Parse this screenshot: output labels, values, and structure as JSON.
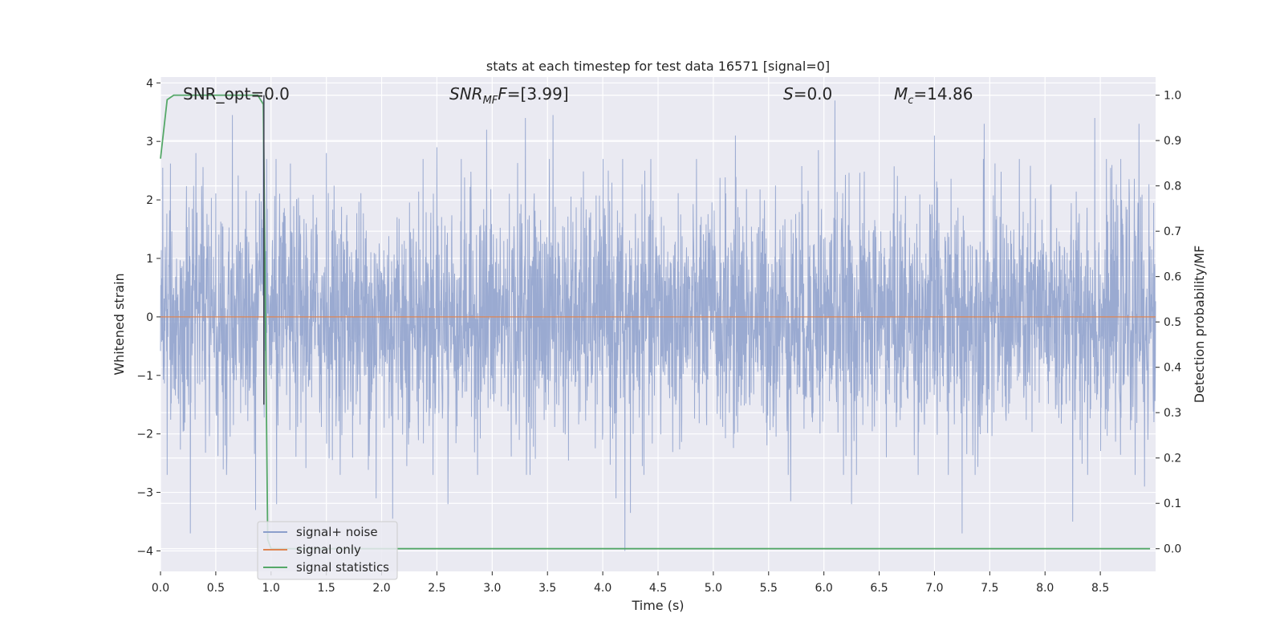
{
  "chart_data": {
    "type": "line",
    "title": "stats at each timestep for test data 16571 [signal=0]",
    "xlabel": "Time (s)",
    "ylabel": "Whitened strain",
    "y2label": "Detection probability/MF",
    "xlim": [
      0,
      9.0
    ],
    "ylim": [
      -4.35,
      4.1
    ],
    "y2lim": [
      -0.05,
      1.04
    ],
    "xticks": [
      0.0,
      0.5,
      1.0,
      1.5,
      2.0,
      2.5,
      3.0,
      3.5,
      4.0,
      4.5,
      5.0,
      5.5,
      6.0,
      6.5,
      7.0,
      7.5,
      8.0,
      8.5
    ],
    "xtick_labels": [
      "0.0",
      "0.5",
      "1.0",
      "1.5",
      "2.0",
      "2.5",
      "3.0",
      "3.5",
      "4.0",
      "4.5",
      "5.0",
      "5.5",
      "6.0",
      "6.5",
      "7.0",
      "7.5",
      "8.0",
      "8.5"
    ],
    "yticks": [
      -4,
      -3,
      -2,
      -1,
      0,
      1,
      2,
      3,
      4
    ],
    "ytick_labels": [
      "−4",
      "−3",
      "−2",
      "−1",
      "0",
      "1",
      "2",
      "3",
      "4"
    ],
    "y2ticks": [
      0.0,
      0.1,
      0.2,
      0.3,
      0.4,
      0.5,
      0.6,
      0.7,
      0.8,
      0.9,
      1.0
    ],
    "y2tick_labels": [
      "0.0",
      "0.1",
      "0.2",
      "0.3",
      "0.4",
      "0.5",
      "0.6",
      "0.7",
      "0.8",
      "0.9",
      "1.0"
    ],
    "grid": true,
    "legend_position": "lower-left",
    "annotations": {
      "snr_opt": "SNR_opt=0.0",
      "snr_mf_main": "SNR",
      "snr_mf_sub": "MF",
      "snr_mf_value": "=[3.99]",
      "s_label": "S",
      "s_value": "=0.0",
      "mc_main": "M",
      "mc_sub": "c",
      "mc_value": "=14.86"
    },
    "series": [
      {
        "name": "signal+ noise",
        "color": "#8c9fcb",
        "style": "noise-trace",
        "noise_sigma": 1.0,
        "peaks": [
          {
            "x": 0.02,
            "y": 2.55
          },
          {
            "x": 0.06,
            "y": -2.7
          },
          {
            "x": 0.27,
            "y": -3.7
          },
          {
            "x": 0.32,
            "y": 2.8
          },
          {
            "x": 0.65,
            "y": 3.45
          },
          {
            "x": 0.86,
            "y": -3.3
          },
          {
            "x": 0.93,
            "y": 3.7
          },
          {
            "x": 1.05,
            "y": -3.2
          },
          {
            "x": 1.5,
            "y": 2.8
          },
          {
            "x": 1.95,
            "y": -3.1
          },
          {
            "x": 2.1,
            "y": -3.45
          },
          {
            "x": 2.5,
            "y": 2.9
          },
          {
            "x": 2.6,
            "y": -3.2
          },
          {
            "x": 2.95,
            "y": 3.2
          },
          {
            "x": 3.3,
            "y": 3.4
          },
          {
            "x": 3.55,
            "y": 3.45
          },
          {
            "x": 4.05,
            "y": 2.5
          },
          {
            "x": 4.12,
            "y": -3.1
          },
          {
            "x": 4.2,
            "y": -4.0
          },
          {
            "x": 4.25,
            "y": -3.35
          },
          {
            "x": 5.2,
            "y": 3.1
          },
          {
            "x": 5.95,
            "y": 2.85
          },
          {
            "x": 6.1,
            "y": 3.7
          },
          {
            "x": 6.25,
            "y": -3.2
          },
          {
            "x": 5.7,
            "y": -3.15
          },
          {
            "x": 7.0,
            "y": 3.1
          },
          {
            "x": 7.25,
            "y": -3.7
          },
          {
            "x": 7.45,
            "y": 3.3
          },
          {
            "x": 8.25,
            "y": -3.5
          },
          {
            "x": 8.45,
            "y": 3.4
          },
          {
            "x": 8.85,
            "y": 3.3
          },
          {
            "x": 8.9,
            "y": -2.9
          }
        ]
      },
      {
        "name": "signal only",
        "color": "#dd8452",
        "x": [
          0.0,
          9.0
        ],
        "y": [
          0.0,
          0.0
        ]
      },
      {
        "name": "signal statistics",
        "color": "#55a868",
        "axis": "right",
        "x": [
          0.0,
          0.06,
          0.12,
          0.3,
          0.6,
          0.88,
          0.93,
          0.97,
          1.0,
          2.0,
          4.0,
          6.0,
          8.0,
          8.95
        ],
        "y": [
          0.86,
          0.99,
          1.0,
          1.0,
          1.0,
          1.0,
          0.98,
          0.02,
          0.0,
          0.0,
          0.0,
          0.0,
          0.0,
          0.0
        ]
      }
    ],
    "legend": [
      "signal+ noise",
      "signal only",
      "signal statistics"
    ]
  }
}
